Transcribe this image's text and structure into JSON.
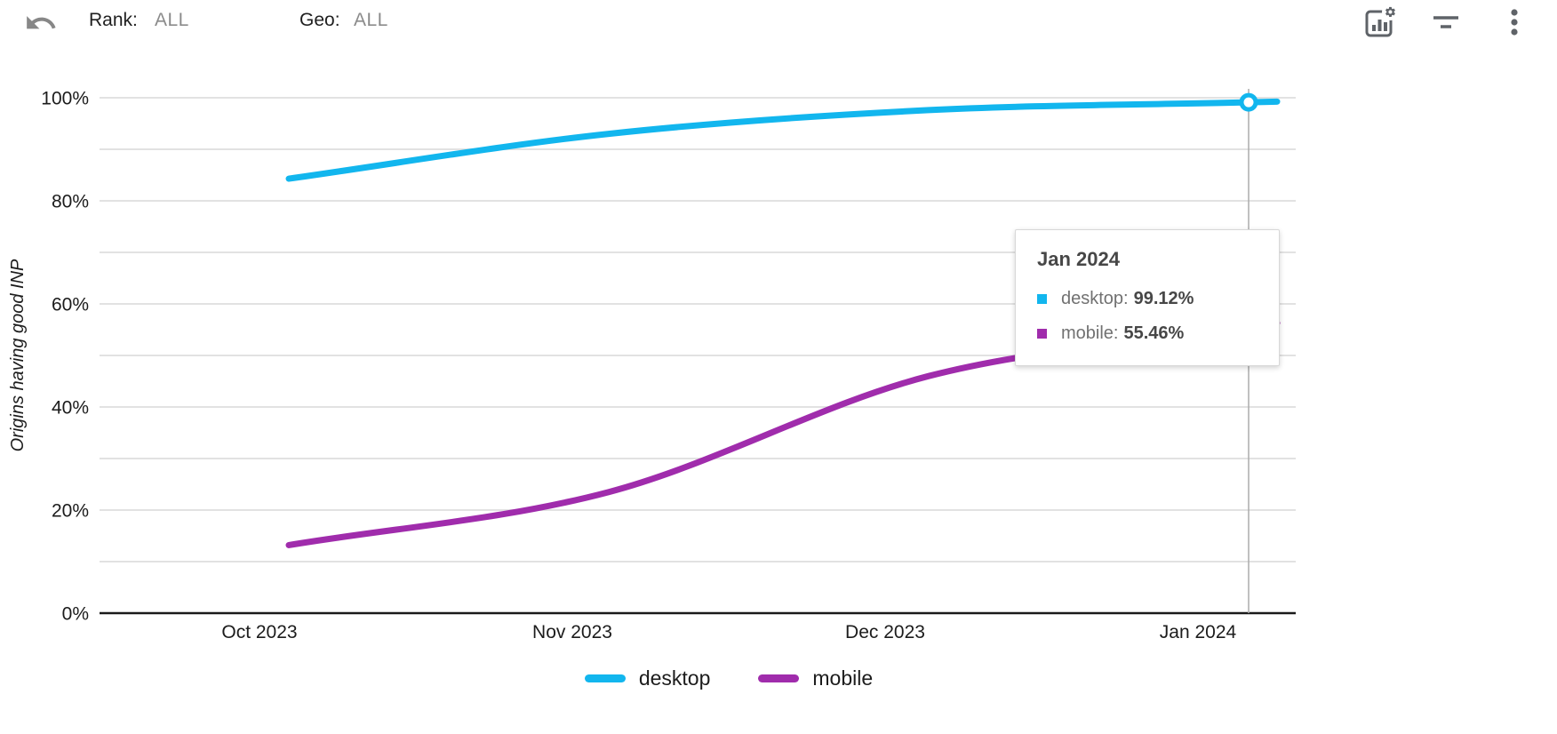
{
  "header": {
    "rank_label": "Rank:",
    "rank_value": "ALL",
    "geo_label": "Geo:",
    "geo_value": "ALL"
  },
  "chart_data": {
    "type": "line",
    "title": "",
    "categories": [
      "Oct 2023",
      "Nov 2023",
      "Dec 2023",
      "Jan 2024"
    ],
    "series": [
      {
        "name": "desktop",
        "color": "#12B6EE",
        "values": [
          84.3,
          93.0,
          97.6,
          99.12
        ]
      },
      {
        "name": "mobile",
        "color": "#A02CAC",
        "values": [
          13.2,
          23.5,
          46.0,
          55.46
        ]
      }
    ],
    "xlabel": "",
    "ylabel": "Origins having good INP",
    "ylim": [
      0,
      100
    ],
    "ytick_labels": [
      "0%",
      "20%",
      "40%",
      "60%",
      "80%",
      "100%"
    ],
    "grid_step_pct": 10,
    "label_step_pct": 20,
    "grid": true,
    "legend_position": "bottom",
    "selected_point": {
      "category": "Jan 2024",
      "desktop_pct": 99.12,
      "mobile_pct": 55.46
    }
  },
  "tooltip": {
    "title": "Jan 2024",
    "rows": [
      {
        "label": "desktop:",
        "value": "99.12%"
      },
      {
        "label": "mobile:",
        "value": "55.46%"
      }
    ]
  },
  "legend": {
    "items": [
      {
        "label": "desktop",
        "color": "#12B6EE"
      },
      {
        "label": "mobile",
        "color": "#A02CAC"
      }
    ]
  },
  "colors": {
    "gridline": "#e2e2e2",
    "axis_line": "#1a1a1a",
    "crosshair": "#ababab",
    "icon_gray": "#5f6368",
    "undo_gray": "#878787"
  }
}
